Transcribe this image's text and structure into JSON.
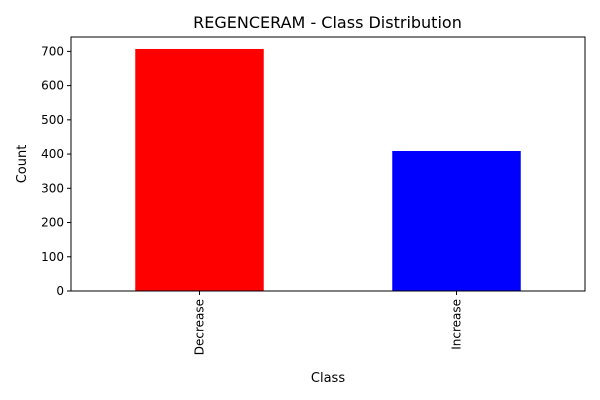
{
  "chart_data": {
    "type": "bar",
    "title": "REGENCERAM - Class Distribution",
    "xlabel": "Class",
    "ylabel": "Count",
    "categories": [
      "Decrease",
      "Increase"
    ],
    "values": [
      707,
      409
    ],
    "colors": [
      "#ff0000",
      "#0000ff"
    ],
    "ylim": [
      0,
      742
    ],
    "yticks": [
      0,
      100,
      200,
      300,
      400,
      500,
      600,
      700
    ],
    "grid": false,
    "legend": "none"
  }
}
